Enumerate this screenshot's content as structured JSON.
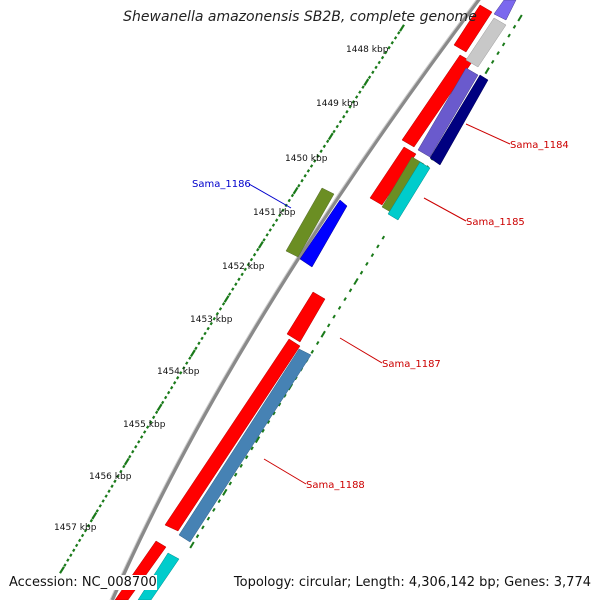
{
  "title": "Shewanella amazonensis SB2B, complete genome",
  "footer": {
    "accession": "Accession: NC_008700",
    "summary": "Topology: circular; Length: 4,306,142 bp; Genes: 3,774"
  },
  "colors": {
    "backbone": "#808080",
    "gc_ticks": "#1a7a1a",
    "cds_red": "#ff0000",
    "cds_olive": "#6b8e23",
    "cds_blue": "#0000ff",
    "cds_steel": "#4682b4",
    "cds_cyan": "#00cccc",
    "cds_navy": "#000080",
    "cds_slate": "#6a5acd",
    "cds_gray": "#c0c0c0",
    "label_red": "#cc0000",
    "label_blue": "#0000cc"
  },
  "kbp_labels": [
    "1448 kbp",
    "1449 kbp",
    "1450 kbp",
    "1451 kbp",
    "1452 kbp",
    "1453 kbp",
    "1454 kbp",
    "1455 kbp",
    "1456 kbp",
    "1457 kbp"
  ],
  "gene_labels": {
    "sama_1184": "Sama_1184",
    "sama_1185": "Sama_1185",
    "sama_1186": "Sama_1186",
    "sama_1187": "Sama_1187",
    "sama_1188": "Sama_1188"
  }
}
